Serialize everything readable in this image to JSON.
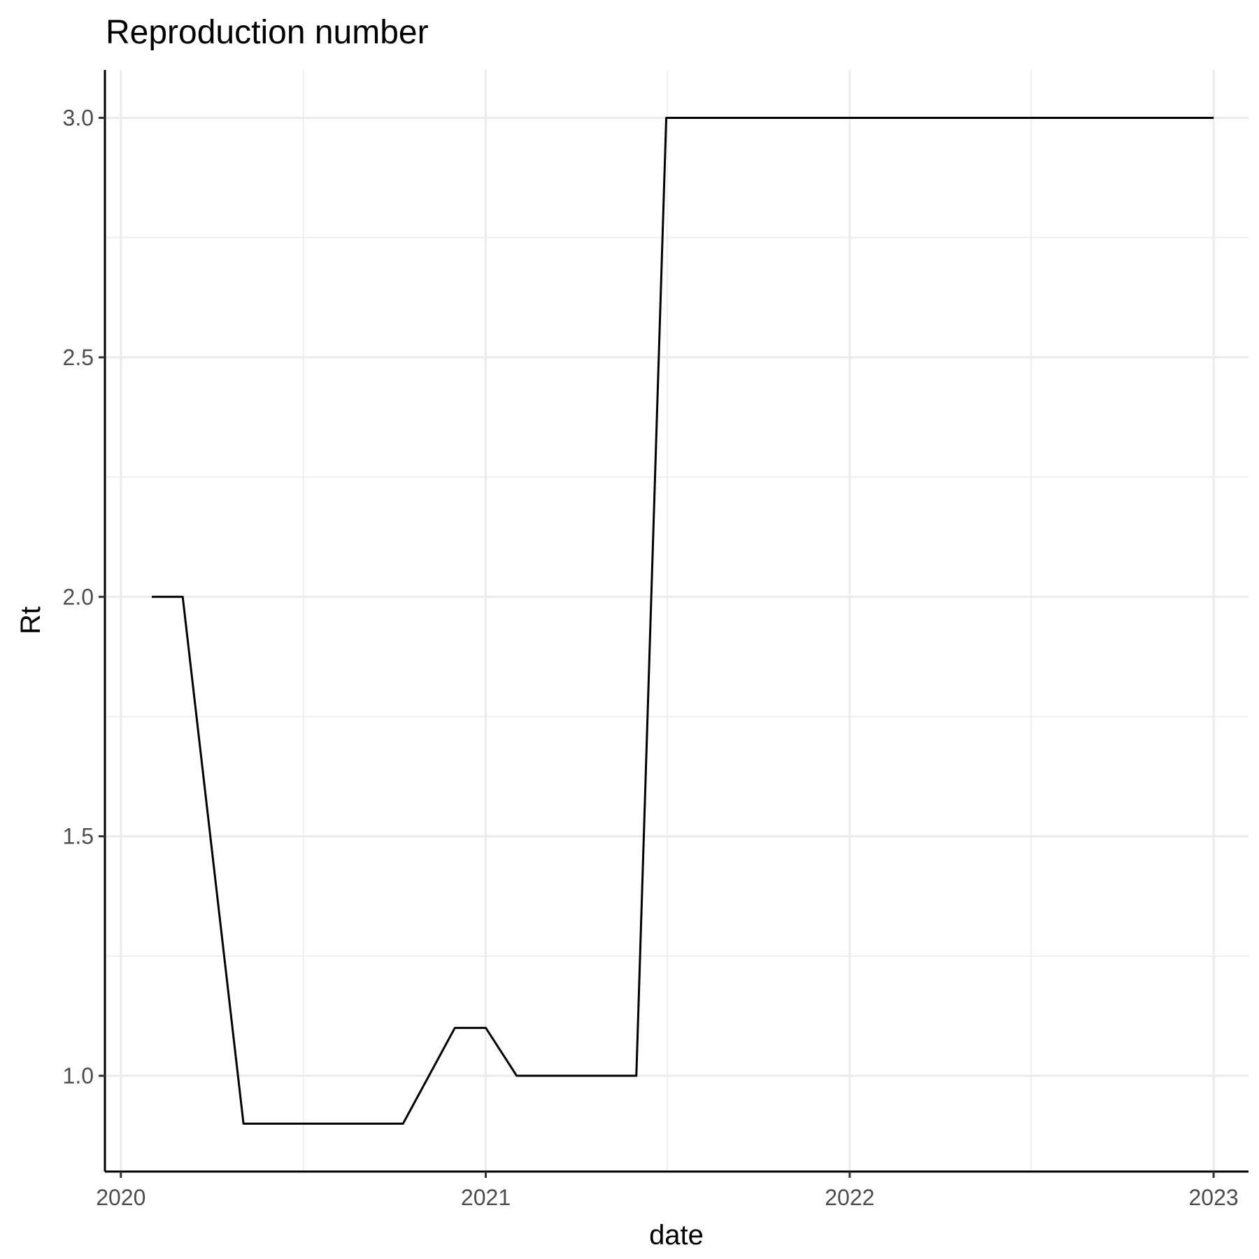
{
  "chart_data": {
    "type": "line",
    "title": "Reproduction number",
    "xlabel": "date",
    "ylabel": "Rt",
    "x_axis_kind": "date",
    "xlim": [
      "2019-12-16",
      "2023-02-05"
    ],
    "ylim": [
      0.8,
      3.1
    ],
    "x_ticks": [
      {
        "date": "2020-01-01",
        "label": "2020"
      },
      {
        "date": "2021-01-01",
        "label": "2021"
      },
      {
        "date": "2022-01-01",
        "label": "2022"
      },
      {
        "date": "2023-01-01",
        "label": "2023"
      }
    ],
    "x_minor_ticks": [
      "2020-07-02",
      "2021-07-02",
      "2022-07-02"
    ],
    "y_ticks": [
      {
        "value": 1.0,
        "label": "1.0"
      },
      {
        "value": 1.5,
        "label": "1.5"
      },
      {
        "value": 2.0,
        "label": "2.0"
      },
      {
        "value": 2.5,
        "label": "2.5"
      },
      {
        "value": 3.0,
        "label": "3.0"
      }
    ],
    "y_minor_ticks": [
      1.25,
      1.75,
      2.25,
      2.75
    ],
    "grid": true,
    "legend": "none",
    "line_color": "#000000",
    "series": [
      {
        "points": [
          {
            "x": "2020-02-01",
            "y": 2.0
          },
          {
            "x": "2020-03-03",
            "y": 2.0
          },
          {
            "x": "2020-05-03",
            "y": 0.9
          },
          {
            "x": "2020-10-10",
            "y": 0.9
          },
          {
            "x": "2020-12-01",
            "y": 1.1
          },
          {
            "x": "2021-01-01",
            "y": 1.1
          },
          {
            "x": "2021-02-01",
            "y": 1.0
          },
          {
            "x": "2021-06-01",
            "y": 1.0
          },
          {
            "x": "2021-07-01",
            "y": 3.0
          },
          {
            "x": "2023-01-01",
            "y": 3.0
          }
        ]
      }
    ]
  }
}
